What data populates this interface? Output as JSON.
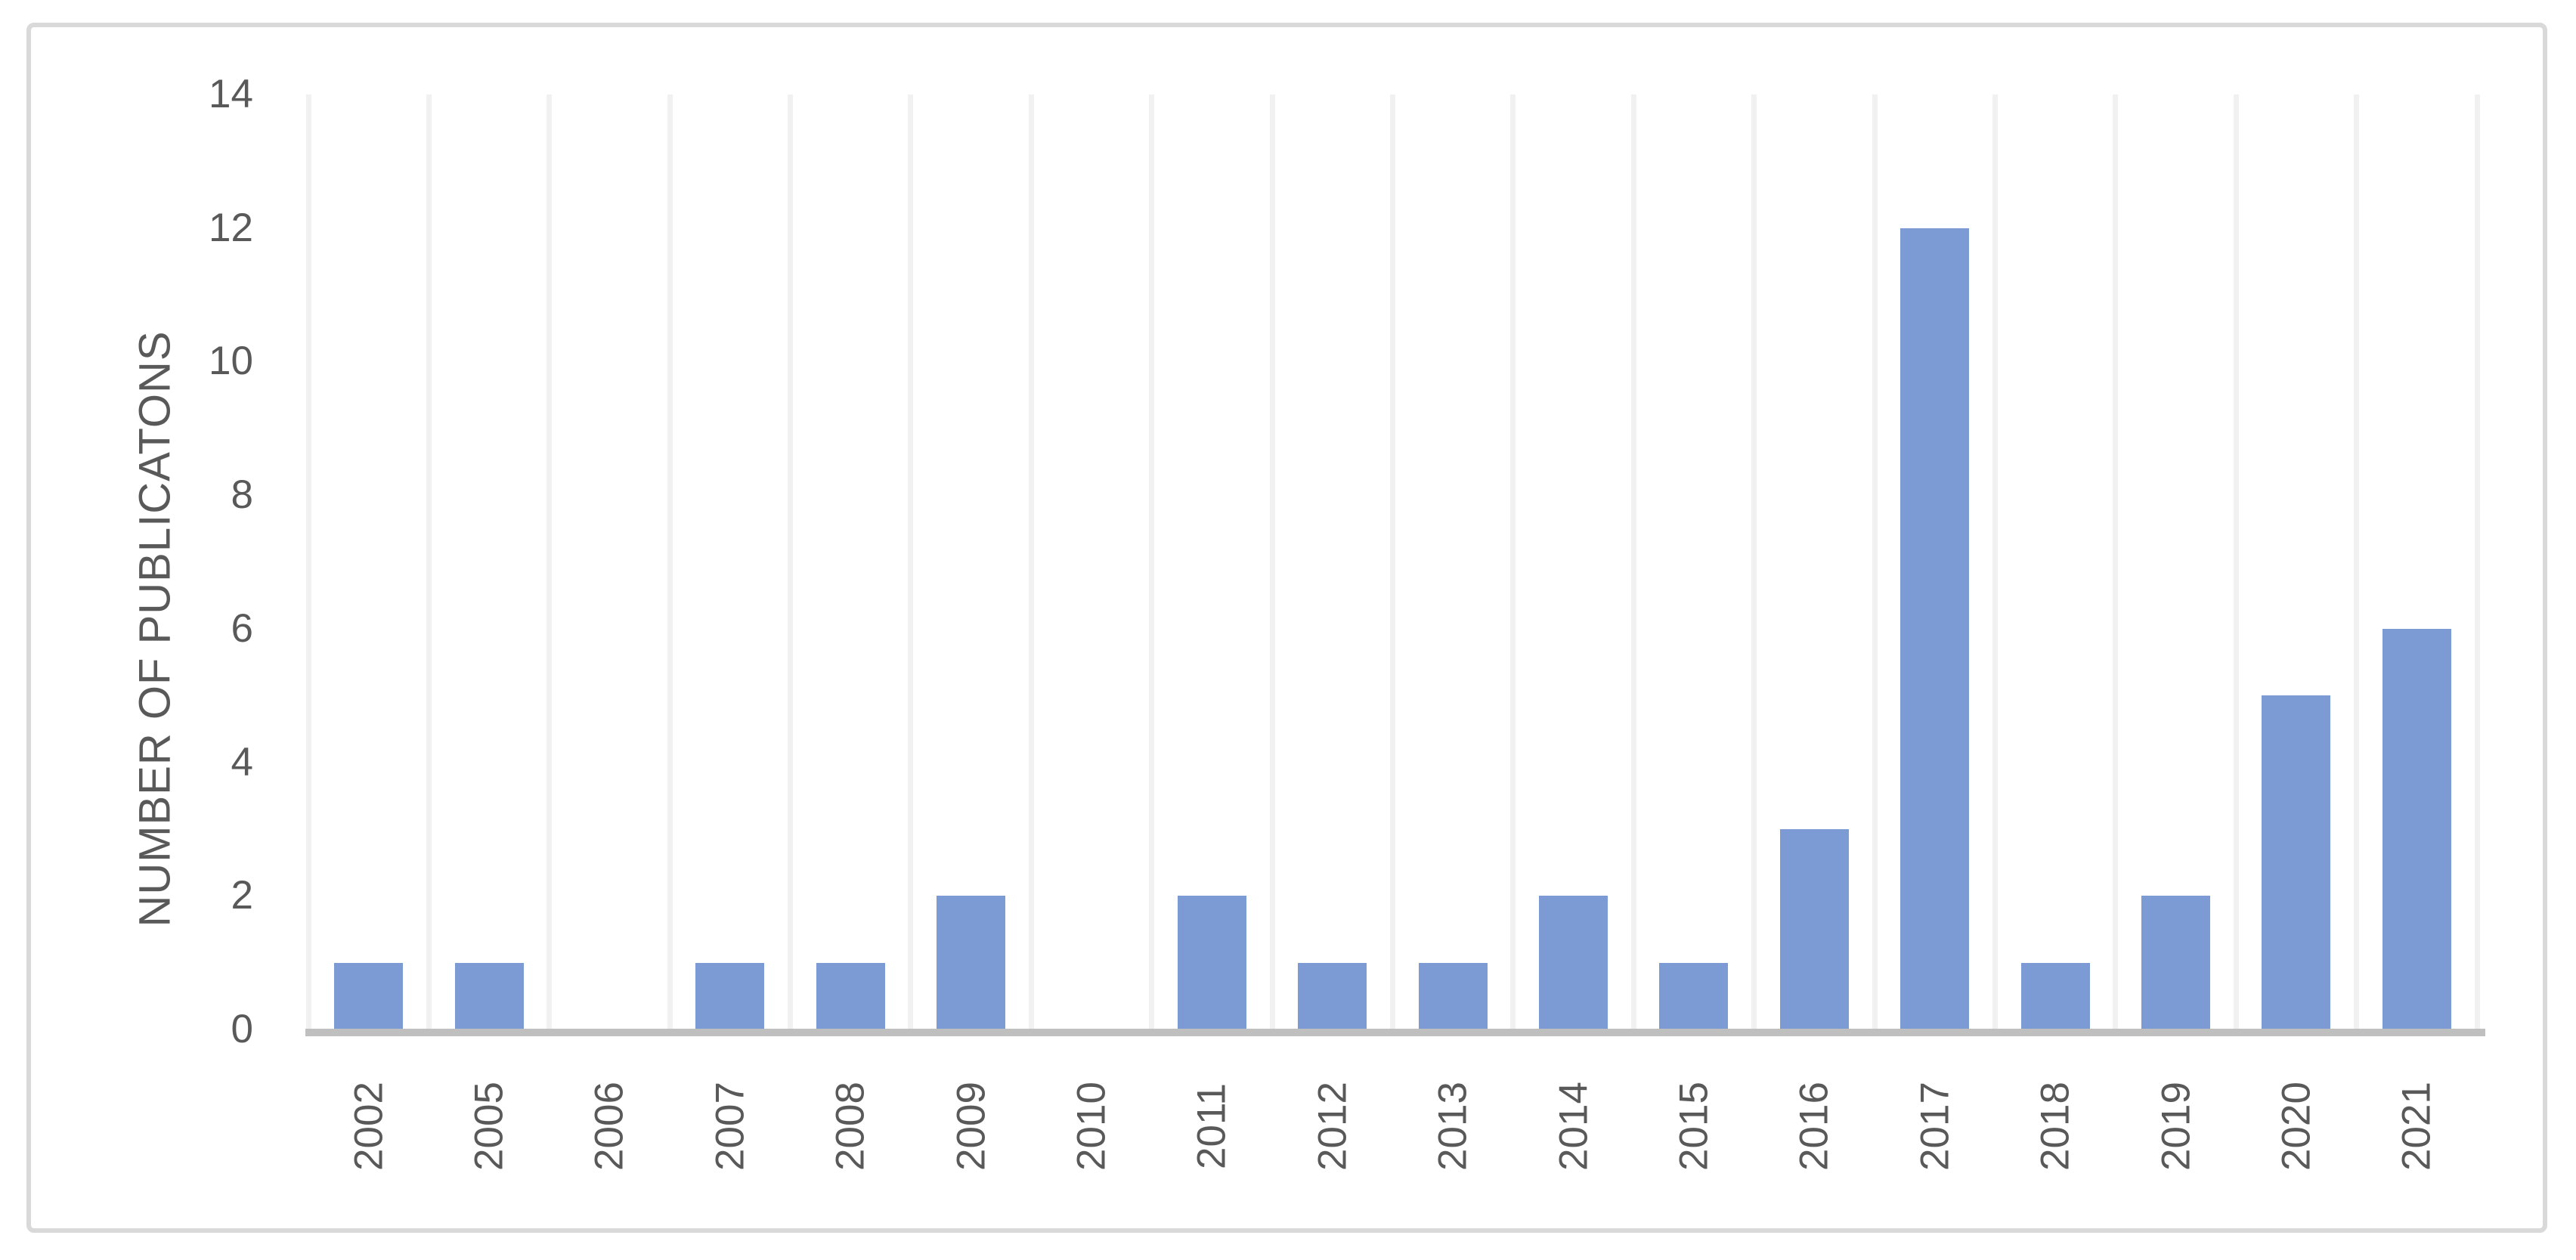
{
  "chart_data": {
    "type": "bar",
    "title": "",
    "xlabel": "",
    "ylabel": "NUMBER OF PUBLICATONS",
    "categories": [
      "2002",
      "2005",
      "2006",
      "2007",
      "2008",
      "2009",
      "2010",
      "2011",
      "2012",
      "2013",
      "2014",
      "2015",
      "2016",
      "2017",
      "2018",
      "2019",
      "2020",
      "2021"
    ],
    "values": [
      1,
      1,
      0,
      1,
      1,
      2,
      0,
      2,
      1,
      1,
      2,
      1,
      3,
      12,
      1,
      2,
      5,
      6
    ],
    "ylim": [
      0,
      14
    ],
    "yticks": [
      0,
      2,
      4,
      6,
      8,
      10,
      12,
      14
    ],
    "grid": "vertical-only",
    "legend_position": "none",
    "bar_color": "#7C9AD3",
    "gridline_color": "#F1F1F1",
    "axis_line_color": "#BFBFBF",
    "tick_text_color": "#595959",
    "frame_border_color": "#D9D9D9",
    "background_color": "#FFFFFF"
  }
}
